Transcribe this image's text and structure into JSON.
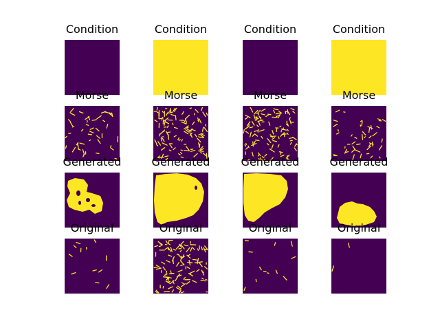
{
  "colors": {
    "background": "#440154",
    "foreground": "#fde725"
  },
  "chart_data": {
    "type": "image_grid",
    "colormap": "viridis",
    "grid": false,
    "axes_visible": false,
    "rows": [
      "Condition",
      "Morse",
      "Generated",
      "Original"
    ],
    "columns": 4,
    "panels": [
      {
        "row": 0,
        "col": 0,
        "title": "Condition",
        "content": "all-dark"
      },
      {
        "row": 0,
        "col": 1,
        "title": "Condition",
        "content": "all-bright"
      },
      {
        "row": 0,
        "col": 2,
        "title": "Condition",
        "content": "all-dark"
      },
      {
        "row": 0,
        "col": 3,
        "title": "Condition",
        "content": "all-bright"
      },
      {
        "row": 1,
        "col": 0,
        "title": "Morse",
        "content": "sparse-dashes"
      },
      {
        "row": 1,
        "col": 1,
        "title": "Morse",
        "content": "dense-dashes"
      },
      {
        "row": 1,
        "col": 2,
        "title": "Morse",
        "content": "dense-dashes"
      },
      {
        "row": 1,
        "col": 3,
        "title": "Morse",
        "content": "sparse-dashes"
      },
      {
        "row": 2,
        "col": 0,
        "title": "Generated",
        "content": "blob-left"
      },
      {
        "row": 2,
        "col": 1,
        "title": "Generated",
        "content": "blob-large"
      },
      {
        "row": 2,
        "col": 2,
        "title": "Generated",
        "content": "blob-top-left"
      },
      {
        "row": 2,
        "col": 3,
        "title": "Generated",
        "content": "blob-bottom"
      },
      {
        "row": 3,
        "col": 0,
        "title": "Original",
        "content": "few-strokes"
      },
      {
        "row": 3,
        "col": 1,
        "title": "Original",
        "content": "dense-dashes"
      },
      {
        "row": 3,
        "col": 2,
        "title": "Original",
        "content": "few-strokes"
      },
      {
        "row": 3,
        "col": 3,
        "title": "Original",
        "content": "single-stroke"
      }
    ]
  }
}
